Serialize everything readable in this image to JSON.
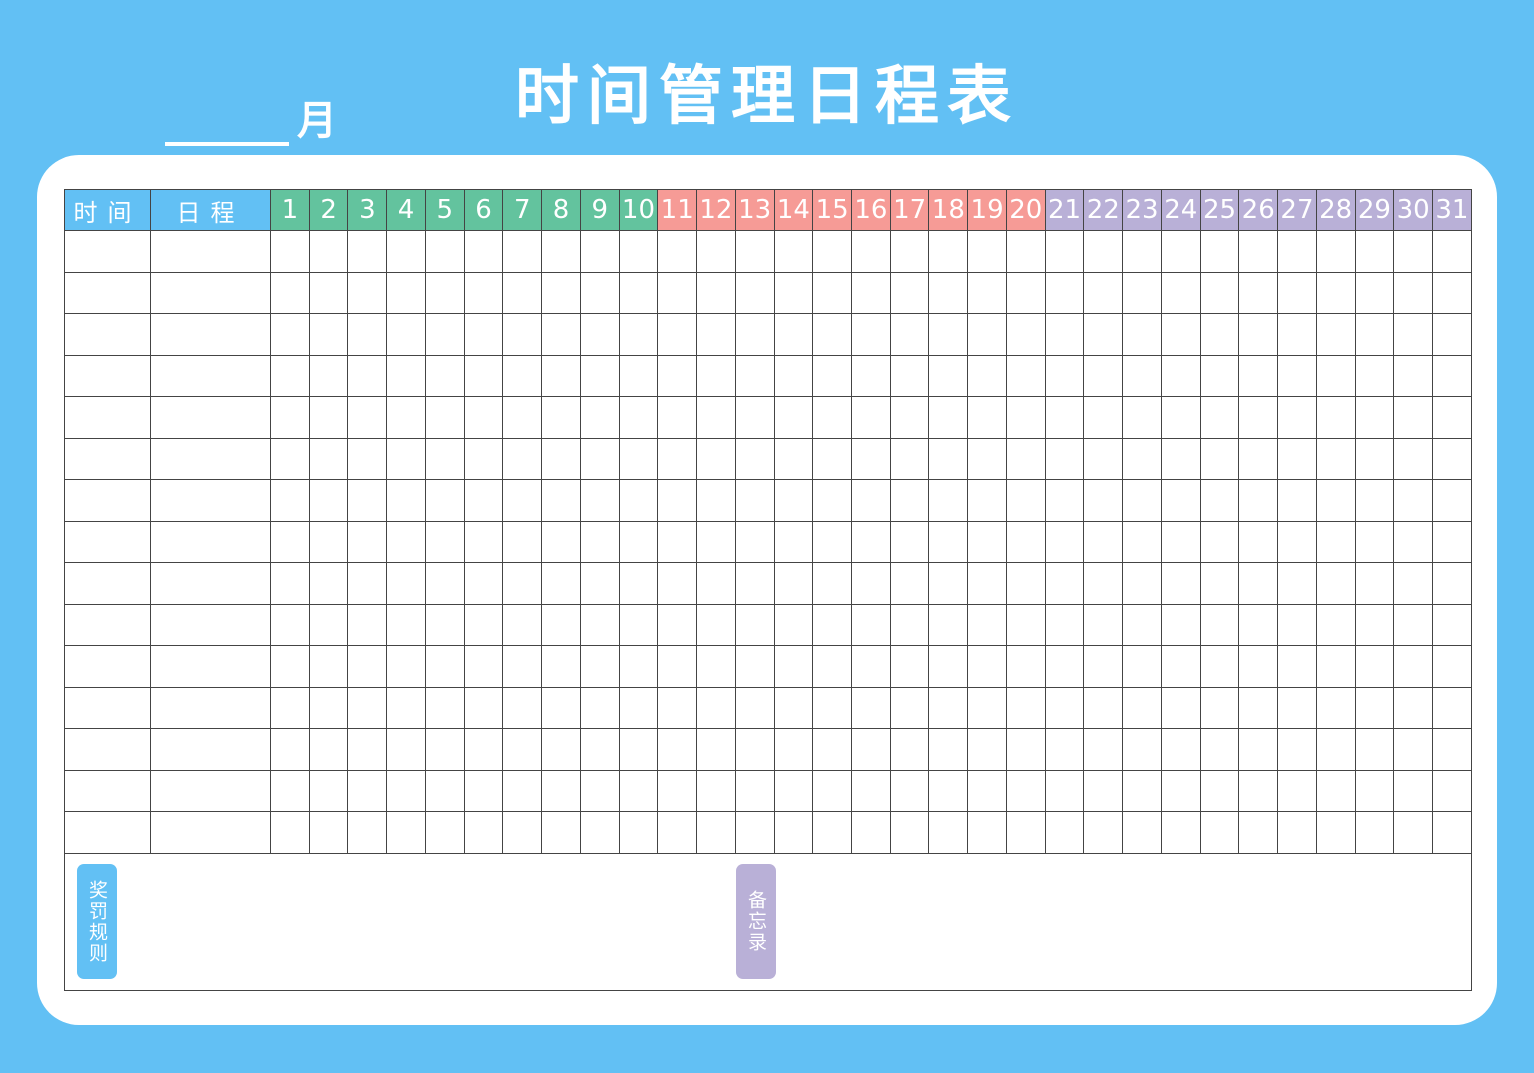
{
  "title": "时间管理日程表",
  "month_label": "月",
  "headers": {
    "time": "时间",
    "schedule": "日程"
  },
  "days": [
    "1",
    "2",
    "3",
    "4",
    "5",
    "6",
    "7",
    "8",
    "9",
    "10",
    "11",
    "12",
    "13",
    "14",
    "15",
    "16",
    "17",
    "18",
    "19",
    "20",
    "21",
    "22",
    "23",
    "24",
    "25",
    "26",
    "27",
    "28",
    "29",
    "30",
    "31"
  ],
  "body_rows": 15,
  "footer": {
    "rewards_label": "奖罚规则",
    "memo_label": "备忘录"
  },
  "colors": {
    "background": "#62c0f4",
    "days_1_10": "#63c39e",
    "days_11_20": "#f69b96",
    "days_21_31": "#b9b0d7",
    "rewards_tag": "#62c0f4",
    "memo_tag": "#b9b0d7"
  }
}
